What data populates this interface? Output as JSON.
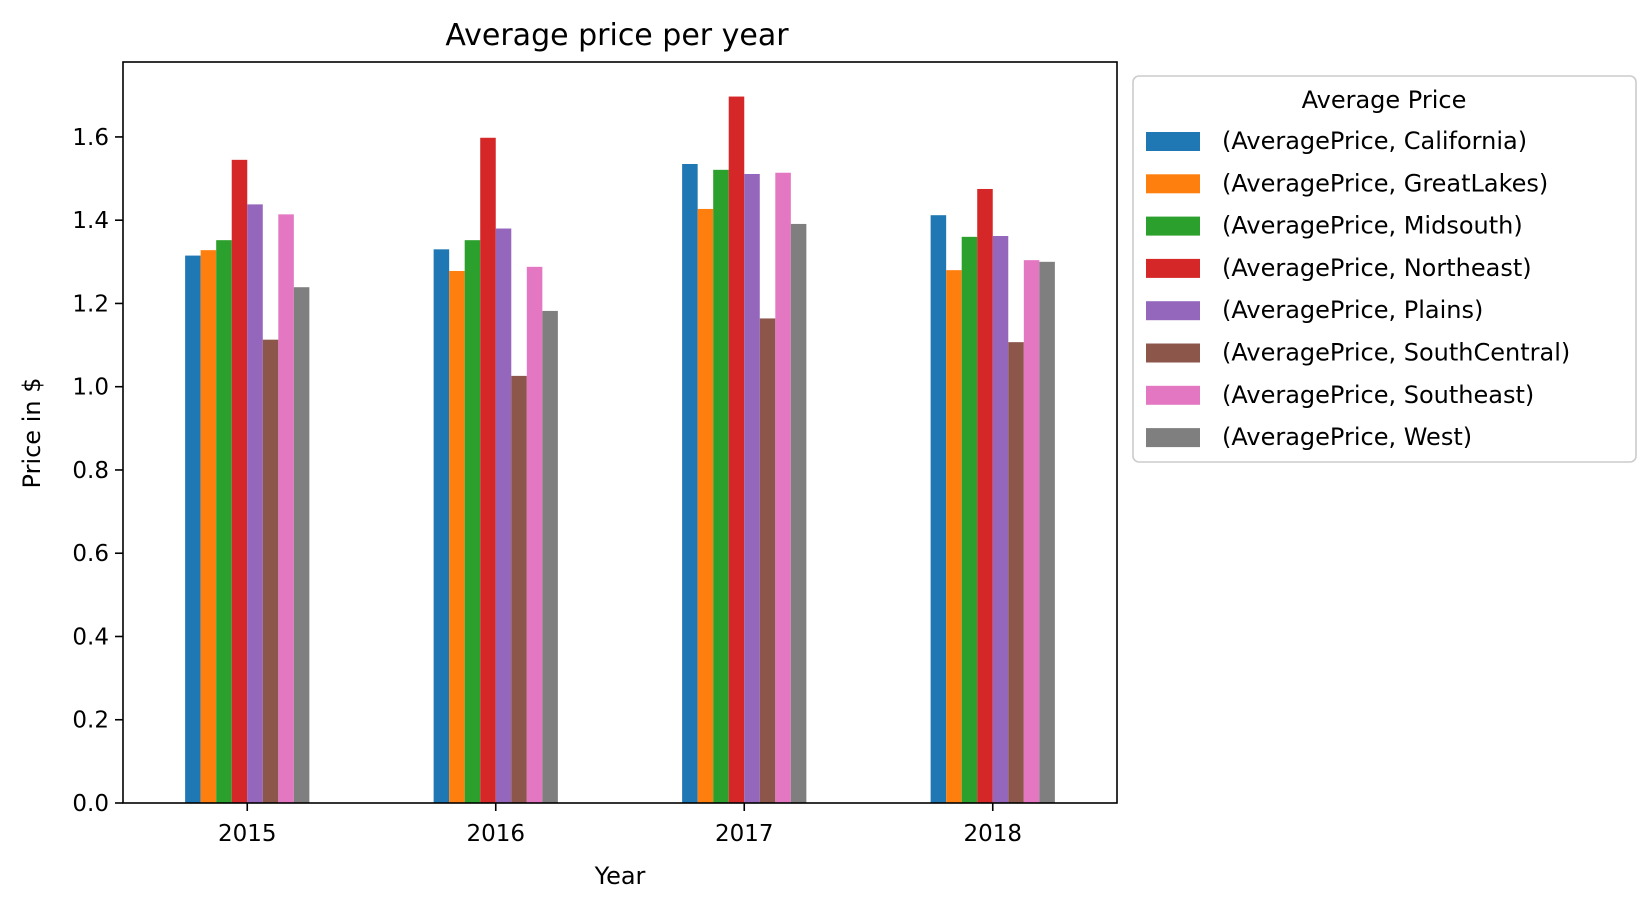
{
  "chart_data": {
    "type": "bar",
    "title": "Average price per year",
    "xlabel": "Year",
    "ylabel": "Price in $",
    "categories": [
      "2015",
      "2016",
      "2017",
      "2018"
    ],
    "ylim": [
      0,
      1.78
    ],
    "yticks": [
      0.0,
      0.2,
      0.4,
      0.6,
      0.8,
      1.0,
      1.2,
      1.4,
      1.6
    ],
    "ytick_labels": [
      "0.0",
      "0.2",
      "0.4",
      "0.6",
      "0.8",
      "1.0",
      "1.2",
      "1.4",
      "1.6"
    ],
    "grid": false,
    "legend": {
      "title": "Average Price",
      "placement": "outside-right-top"
    },
    "series": [
      {
        "name": "(AveragePrice, California)",
        "color": "#1f77b4",
        "values": [
          1.315,
          1.33,
          1.535,
          1.412
        ]
      },
      {
        "name": "(AveragePrice, GreatLakes)",
        "color": "#ff7f0e",
        "values": [
          1.328,
          1.278,
          1.427,
          1.28
        ]
      },
      {
        "name": "(AveragePrice, Midsouth)",
        "color": "#2ca02c",
        "values": [
          1.352,
          1.352,
          1.521,
          1.36
        ]
      },
      {
        "name": "(AveragePrice, Northeast)",
        "color": "#d62728",
        "values": [
          1.545,
          1.598,
          1.697,
          1.475
        ]
      },
      {
        "name": "(AveragePrice, Plains)",
        "color": "#9467bd",
        "values": [
          1.438,
          1.38,
          1.511,
          1.362
        ]
      },
      {
        "name": "(AveragePrice, SouthCentral)",
        "color": "#8c564b",
        "values": [
          1.113,
          1.026,
          1.164,
          1.107
        ]
      },
      {
        "name": "(AveragePrice, Southeast)",
        "color": "#e377c2",
        "values": [
          1.414,
          1.288,
          1.514,
          1.304
        ]
      },
      {
        "name": "(AveragePrice, West)",
        "color": "#7f7f7f",
        "values": [
          1.239,
          1.182,
          1.391,
          1.3
        ]
      }
    ]
  }
}
